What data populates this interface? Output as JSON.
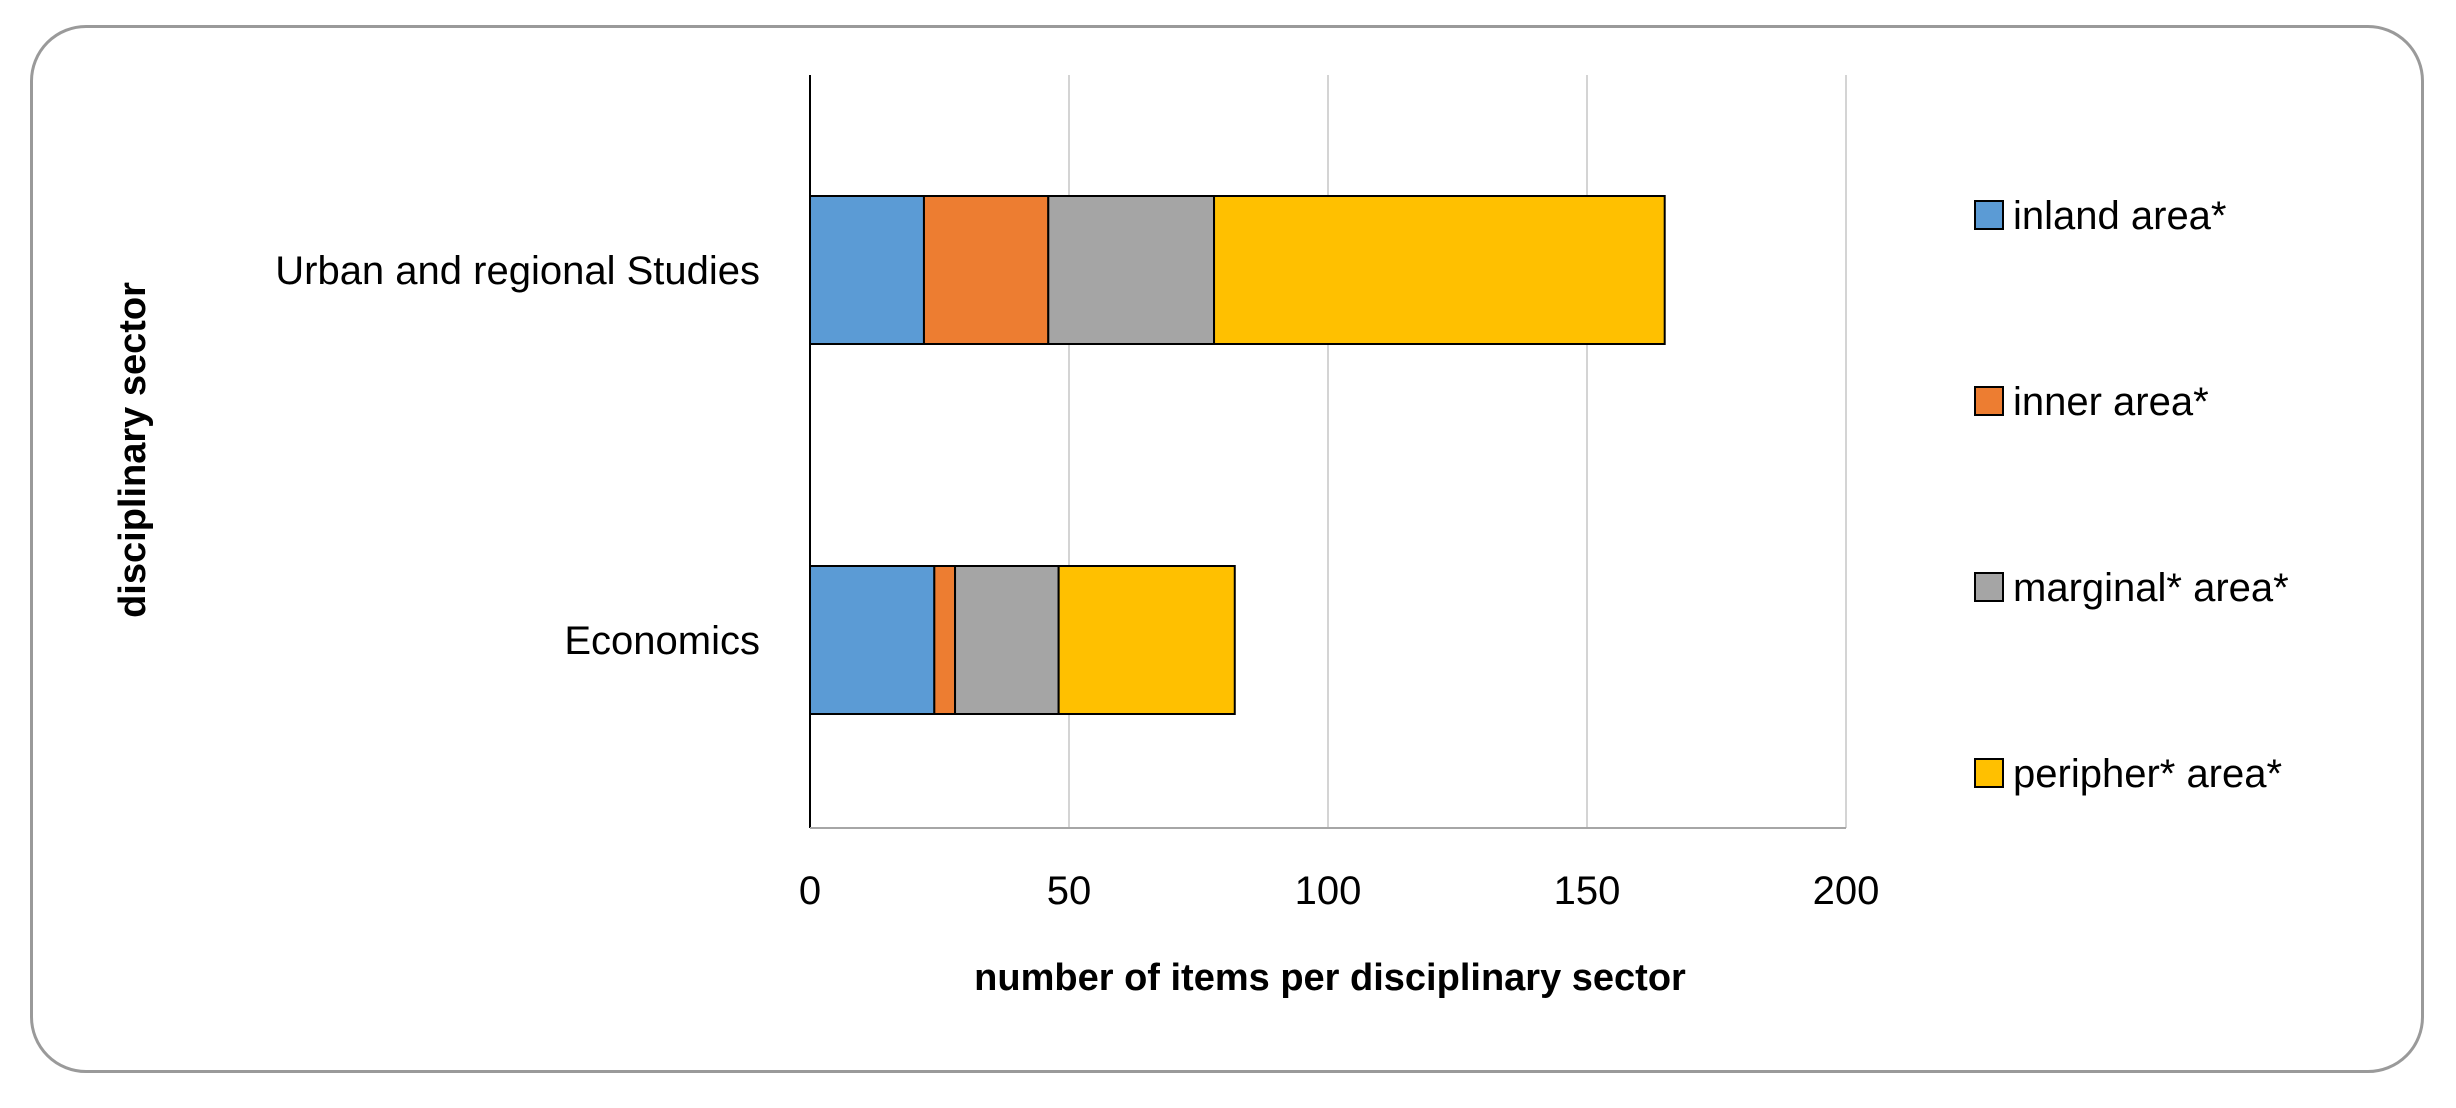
{
  "chart_data": {
    "type": "bar",
    "orientation": "horizontal",
    "stacked": true,
    "title": "",
    "xlabel": "number of items per disciplinary sector",
    "ylabel": "disciplinary sector",
    "categories": [
      "Urban and regional Studies",
      "Economics"
    ],
    "series": [
      {
        "name": "inland area*",
        "color": "#5B9BD5",
        "values": [
          22,
          24
        ]
      },
      {
        "name": "inner area*",
        "color": "#ED7D31",
        "values": [
          24,
          4
        ]
      },
      {
        "name": "marginal* area*",
        "color": "#A5A5A5",
        "values": [
          32,
          20
        ]
      },
      {
        "name": "peripher* area*",
        "color": "#FFC000",
        "values": [
          87,
          34
        ]
      }
    ],
    "xlim": [
      0,
      200
    ],
    "xticks": [
      0,
      50,
      100,
      150,
      200
    ],
    "xtick_labels": [
      "0",
      "50",
      "100",
      "150",
      "200"
    ],
    "grid": "vertical",
    "legend_position": "right"
  }
}
